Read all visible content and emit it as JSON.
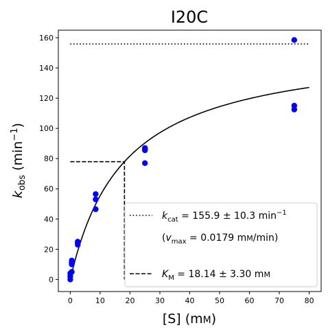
{
  "chart_data": {
    "type": "scatter",
    "title": "I20C",
    "xlabel": "[S] (mм)",
    "ylabel": "kobs (min−1)",
    "xlim": [
      -4,
      84
    ],
    "ylim": [
      -8,
      165
    ],
    "xticks": [
      0,
      10,
      20,
      30,
      40,
      50,
      60,
      70,
      80
    ],
    "yticks": [
      0,
      20,
      40,
      60,
      80,
      100,
      120,
      140,
      160
    ],
    "grid": false,
    "legend_position": "bottom-right",
    "colors": {
      "points": "#0000ff",
      "lines": "#000000"
    },
    "series": [
      {
        "type": "scatter",
        "points": [
          {
            "x": 0,
            "y": 0
          },
          {
            "x": 0,
            "y": 2
          },
          {
            "x": 0,
            "y": 4
          },
          {
            "x": 0.25,
            "y": 4.5
          },
          {
            "x": 0.5,
            "y": 5
          },
          {
            "x": 0.5,
            "y": 10
          },
          {
            "x": 0.5,
            "y": 11
          },
          {
            "x": 0.5,
            "y": 12.5
          },
          {
            "x": 2.5,
            "y": 23
          },
          {
            "x": 2.5,
            "y": 24
          },
          {
            "x": 2.5,
            "y": 25
          },
          {
            "x": 8.5,
            "y": 46.5
          },
          {
            "x": 8.5,
            "y": 53
          },
          {
            "x": 8.5,
            "y": 56.5
          },
          {
            "x": 25,
            "y": 77
          },
          {
            "x": 25,
            "y": 85.5
          },
          {
            "x": 25,
            "y": 86.5
          },
          {
            "x": 25,
            "y": 87
          },
          {
            "x": 75,
            "y": 112.5
          },
          {
            "x": 75,
            "y": 115
          },
          {
            "x": 75,
            "y": 158.5
          }
        ]
      },
      {
        "type": "michaelis-menten fit",
        "kcat": 155.9,
        "KM": 18.14,
        "x_range": [
          0,
          80
        ]
      },
      {
        "type": "kcat line",
        "y": 155.9,
        "x_range": [
          0,
          80
        ]
      },
      {
        "type": "KM guide",
        "x": 18.14,
        "y": 77.95
      }
    ],
    "legend": [
      {
        "label": "kcat = 155.9 ± 10.3 min−1",
        "style": "dotted"
      },
      {
        "label": "(vmax = 0.0179 mм/min)",
        "style": "none"
      },
      {
        "label": "KM = 18.14 ± 3.30 mм",
        "style": "dashed"
      }
    ]
  }
}
